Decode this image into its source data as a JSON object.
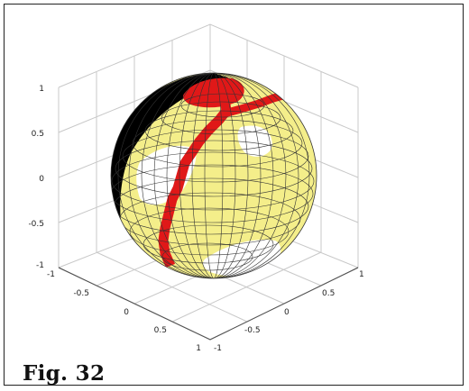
{
  "caption": "Fig. 32",
  "figure": {
    "type": "3d-sphere-surface",
    "colors": {
      "yellow": "#f4ee8a",
      "white": "#ffffff",
      "red": "#e01818",
      "black": "#000000",
      "mesh": "#333333",
      "axis": "#c8c8c8"
    },
    "z_ticks": [
      "1",
      "0.5",
      "0",
      "-0.5",
      "-1"
    ],
    "x_ticks": [
      "-1",
      "-0.5",
      "0",
      "0.5",
      "1"
    ],
    "y_ticks": [
      "-1",
      "-0.5",
      "0",
      "0.5",
      "1"
    ]
  }
}
